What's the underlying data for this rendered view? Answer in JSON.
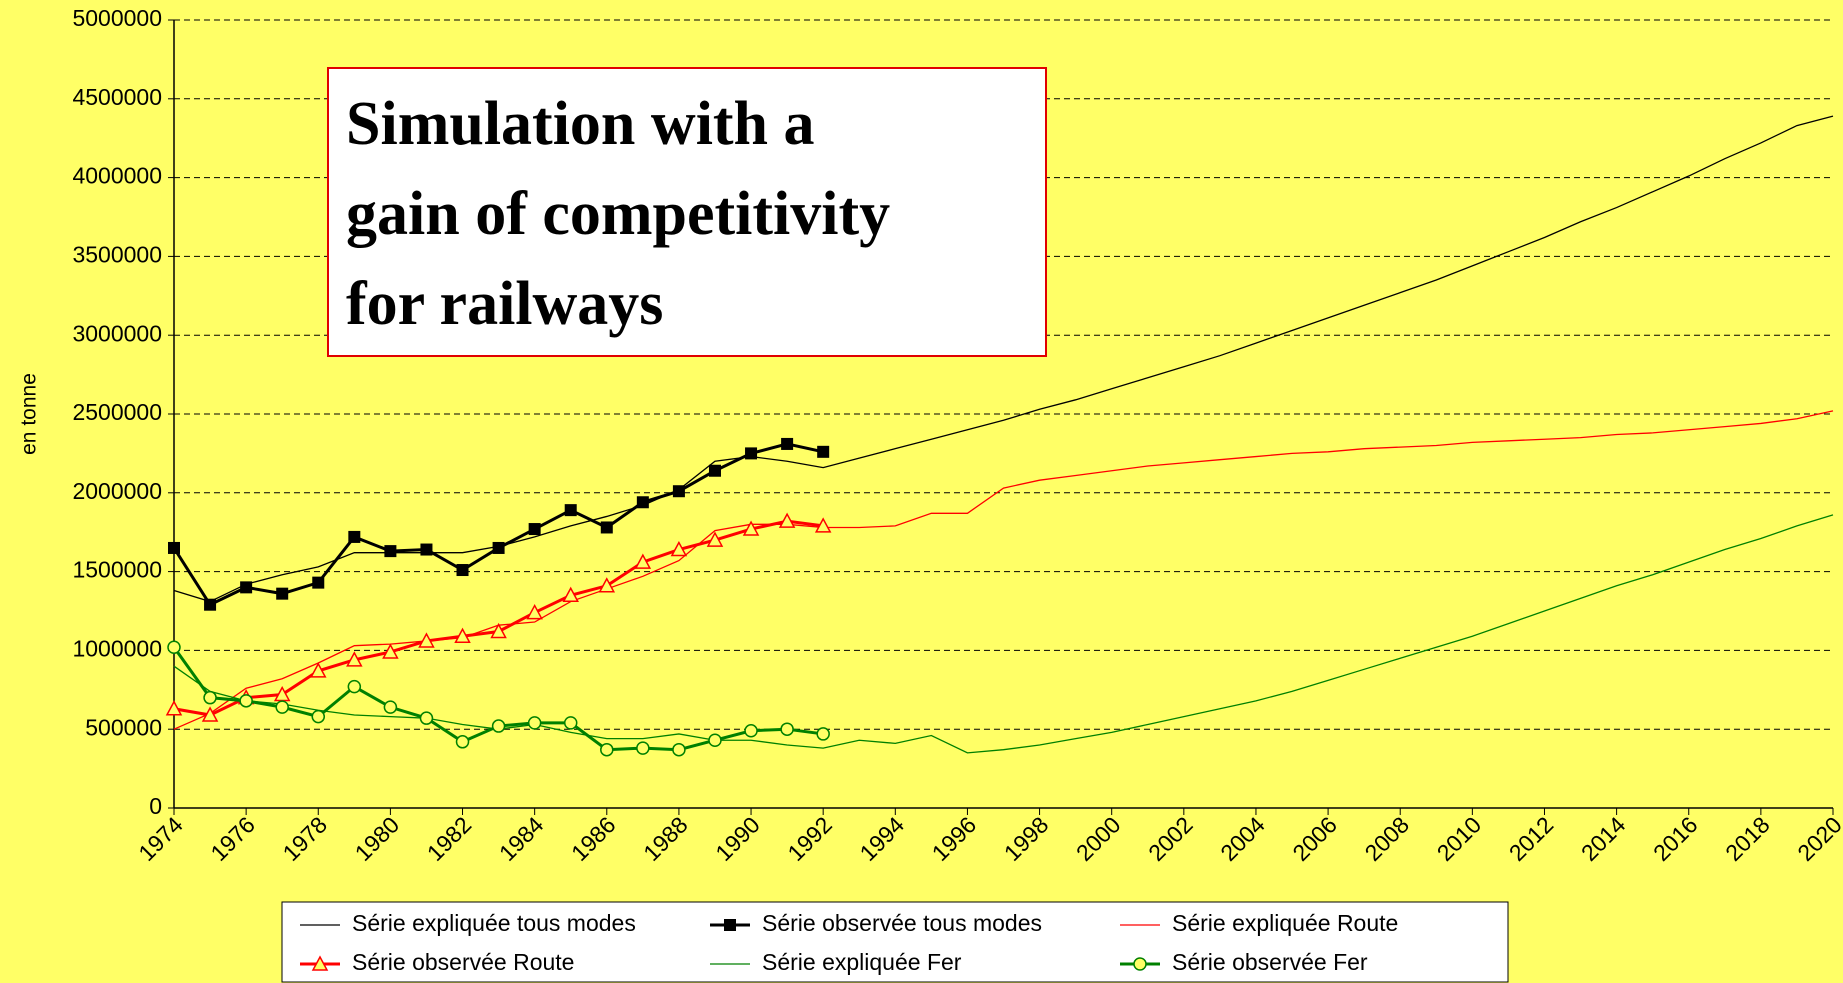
{
  "chart_data": {
    "type": "line",
    "annotation": [
      "Simulation with a",
      "gain of competitivity",
      "for railways"
    ],
    "y_label": "en tonne",
    "x": [
      1974,
      1975,
      1976,
      1977,
      1978,
      1979,
      1980,
      1981,
      1982,
      1983,
      1984,
      1985,
      1986,
      1987,
      1988,
      1989,
      1990,
      1991,
      1992,
      1993,
      1994,
      1995,
      1996,
      1997,
      1998,
      1999,
      2000,
      2001,
      2002,
      2003,
      2004,
      2005,
      2006,
      2007,
      2008,
      2009,
      2010,
      2011,
      2012,
      2013,
      2014,
      2015,
      2016,
      2017,
      2018,
      2019,
      2020
    ],
    "xlim": [
      1974,
      2020
    ],
    "xticks": [
      1974,
      1976,
      1978,
      1980,
      1982,
      1984,
      1986,
      1988,
      1990,
      1992,
      1994,
      1996,
      1998,
      2000,
      2002,
      2004,
      2006,
      2008,
      2010,
      2012,
      2014,
      2016,
      2018,
      2020
    ],
    "ylim": [
      0,
      5000000
    ],
    "yticks": [
      0,
      500000,
      1000000,
      1500000,
      2000000,
      2500000,
      3000000,
      3500000,
      4000000,
      4500000,
      5000000
    ],
    "grid": true,
    "series": [
      {
        "name": "Série expliquée tous modes",
        "color": "#000000",
        "marker": "none",
        "width": 1.3,
        "values": [
          1380000,
          1310000,
          1420000,
          1480000,
          1530000,
          1620000,
          1620000,
          1620000,
          1620000,
          1660000,
          1720000,
          1790000,
          1850000,
          1920000,
          2020000,
          2200000,
          2230000,
          2200000,
          2160000,
          2220000,
          2280000,
          2340000,
          2400000,
          2460000,
          2530000,
          2590000,
          2660000,
          2730000,
          2800000,
          2870000,
          2950000,
          3030000,
          3110000,
          3190000,
          3270000,
          3350000,
          3440000,
          3530000,
          3620000,
          3720000,
          3810000,
          3910000,
          4010000,
          4120000,
          4220000,
          4330000,
          4390000
        ]
      },
      {
        "name": "Série observée tous modes",
        "color": "#000000",
        "marker": "square",
        "width": 3,
        "values": [
          1650000,
          1290000,
          1400000,
          1360000,
          1430000,
          1720000,
          1630000,
          1640000,
          1510000,
          1650000,
          1770000,
          1890000,
          1780000,
          1940000,
          2010000,
          2140000,
          2250000,
          2310000,
          2260000,
          null,
          null,
          null,
          null,
          null,
          null,
          null,
          null,
          null,
          null,
          null,
          null,
          null,
          null,
          null,
          null,
          null,
          null,
          null,
          null,
          null,
          null,
          null,
          null,
          null,
          null,
          null,
          null
        ]
      },
      {
        "name": "Série expliquée Route",
        "color": "#ff0000",
        "marker": "none",
        "width": 1.3,
        "values": [
          500000,
          600000,
          760000,
          820000,
          920000,
          1030000,
          1040000,
          1060000,
          1080000,
          1160000,
          1180000,
          1310000,
          1390000,
          1470000,
          1570000,
          1760000,
          1800000,
          1800000,
          1780000,
          1780000,
          1790000,
          1870000,
          1870000,
          2030000,
          2080000,
          2110000,
          2140000,
          2170000,
          2190000,
          2210000,
          2230000,
          2250000,
          2260000,
          2280000,
          2290000,
          2300000,
          2320000,
          2330000,
          2340000,
          2350000,
          2370000,
          2380000,
          2400000,
          2420000,
          2440000,
          2470000,
          2520000
        ]
      },
      {
        "name": "Série observée Route",
        "color": "#ff0000",
        "marker": "triangle",
        "width": 3,
        "values": [
          630000,
          590000,
          700000,
          720000,
          870000,
          940000,
          990000,
          1060000,
          1090000,
          1120000,
          1240000,
          1350000,
          1410000,
          1560000,
          1640000,
          1700000,
          1770000,
          1820000,
          1790000,
          null,
          null,
          null,
          null,
          null,
          null,
          null,
          null,
          null,
          null,
          null,
          null,
          null,
          null,
          null,
          null,
          null,
          null,
          null,
          null,
          null,
          null,
          null,
          null,
          null,
          null,
          null,
          null
        ]
      },
      {
        "name": "Série expliquée Fer",
        "color": "#008000",
        "marker": "none",
        "width": 1.3,
        "values": [
          900000,
          740000,
          680000,
          660000,
          620000,
          590000,
          580000,
          570000,
          530000,
          500000,
          530000,
          480000,
          440000,
          440000,
          470000,
          430000,
          430000,
          400000,
          380000,
          430000,
          410000,
          460000,
          350000,
          370000,
          400000,
          440000,
          480000,
          530000,
          580000,
          630000,
          680000,
          740000,
          810000,
          880000,
          950000,
          1020000,
          1090000,
          1170000,
          1250000,
          1330000,
          1410000,
          1480000,
          1560000,
          1640000,
          1710000,
          1790000,
          1860000
        ]
      },
      {
        "name": "Série observée Fer",
        "color": "#008000",
        "marker": "circle",
        "width": 3,
        "values": [
          1020000,
          700000,
          680000,
          640000,
          580000,
          770000,
          640000,
          570000,
          420000,
          520000,
          540000,
          540000,
          370000,
          380000,
          370000,
          430000,
          490000,
          500000,
          470000,
          null,
          null,
          null,
          null,
          null,
          null,
          null,
          null,
          null,
          null,
          null,
          null,
          null,
          null,
          null,
          null,
          null,
          null,
          null,
          null,
          null,
          null,
          null,
          null,
          null,
          null,
          null,
          null
        ]
      }
    ]
  }
}
